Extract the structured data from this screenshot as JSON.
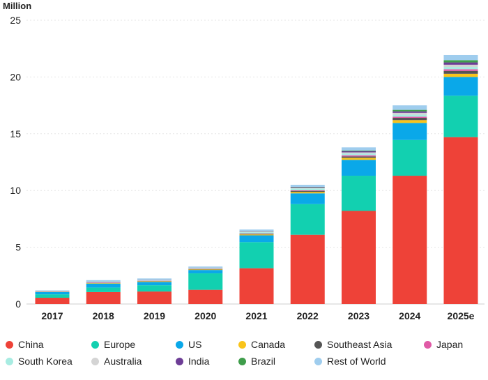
{
  "chart_data": {
    "type": "bar",
    "stacked": true,
    "unit_label": "Million",
    "ylim": [
      0,
      25
    ],
    "yticks": [
      "0",
      "5",
      "10",
      "15",
      "20",
      "25"
    ],
    "categories": [
      "2017",
      "2018",
      "2019",
      "2020",
      "2021",
      "2022",
      "2023",
      "2024",
      "2025e"
    ],
    "grid": true,
    "legend_position": "bottom",
    "series": [
      {
        "name": "China",
        "color": "#ee4238",
        "values": [
          0.55,
          1.05,
          1.1,
          1.25,
          3.15,
          6.1,
          8.2,
          11.3,
          14.7
        ]
      },
      {
        "name": "Europe",
        "color": "#12d0b0",
        "values": [
          0.3,
          0.4,
          0.55,
          1.45,
          2.3,
          2.7,
          3.1,
          3.15,
          3.65
        ]
      },
      {
        "name": "US",
        "color": "#0aa8e9",
        "values": [
          0.2,
          0.35,
          0.3,
          0.3,
          0.6,
          0.95,
          1.4,
          1.5,
          1.65
        ]
      },
      {
        "name": "Canada",
        "color": "#f9c41b",
        "values": [
          0.02,
          0.04,
          0.05,
          0.05,
          0.08,
          0.12,
          0.18,
          0.25,
          0.28
        ]
      },
      {
        "name": "Southeast Asia",
        "color": "#555555",
        "values": [
          0.01,
          0.02,
          0.02,
          0.03,
          0.06,
          0.1,
          0.12,
          0.2,
          0.25
        ]
      },
      {
        "name": "Japan",
        "color": "#e05aa6",
        "values": [
          0.02,
          0.04,
          0.03,
          0.02,
          0.03,
          0.05,
          0.1,
          0.1,
          0.15
        ]
      },
      {
        "name": "South Korea",
        "color": "#a8ece2",
        "values": [
          0.01,
          0.03,
          0.03,
          0.04,
          0.1,
          0.16,
          0.16,
          0.18,
          0.2
        ]
      },
      {
        "name": "Australia",
        "color": "#d4d4d4",
        "values": [
          0.02,
          0.03,
          0.03,
          0.04,
          0.05,
          0.06,
          0.1,
          0.16,
          0.2
        ]
      },
      {
        "name": "India",
        "color": "#6d3d96",
        "values": [
          0.01,
          0.01,
          0.01,
          0.01,
          0.02,
          0.05,
          0.1,
          0.13,
          0.2
        ]
      },
      {
        "name": "Brazil",
        "color": "#3f9d4b",
        "values": [
          0.01,
          0.01,
          0.01,
          0.01,
          0.02,
          0.03,
          0.06,
          0.13,
          0.2
        ]
      },
      {
        "name": "Rest of World",
        "color": "#9fcdee",
        "values": [
          0.05,
          0.12,
          0.12,
          0.1,
          0.15,
          0.18,
          0.28,
          0.4,
          0.45
        ]
      }
    ]
  }
}
